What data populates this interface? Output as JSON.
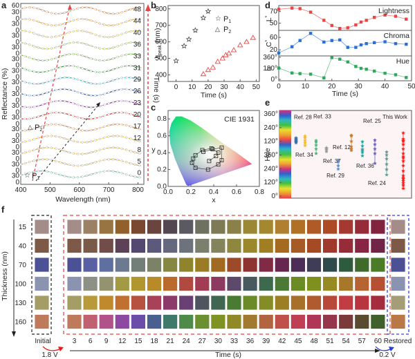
{
  "chart_data": [
    {
      "panel": "a",
      "type": "line",
      "title": "",
      "xlabel": "Wavelength (nm)",
      "ylabel": "Reflectance (%)",
      "right_label": "Time (s)",
      "xlim": [
        400,
        820
      ],
      "xticks": [
        "400",
        "500",
        "600",
        "700",
        "800"
      ],
      "yticks_top": [
        "60",
        "30"
      ],
      "ytick_repeat": [
        "30",
        "0"
      ],
      "series_times": [
        "0",
        "5",
        "8",
        "12",
        "17",
        "20",
        "23",
        "26",
        "29",
        "31",
        "33",
        "36",
        "40",
        "44",
        "48"
      ],
      "series_colors": [
        "#6fc7b7",
        "#e6b537",
        "#e6b537",
        "#f0c030",
        "#f08c35",
        "#e63a30",
        "#a03fb0",
        "#2f63c0",
        "#2fb6cf",
        "#39a83c",
        "#7fc33c",
        "#b4d43a",
        "#f1cf3b",
        "#f5b13a",
        "#f08c35"
      ],
      "annotations": [
        "P1",
        "P2"
      ],
      "peak_P1_path": "black dashed arrow",
      "peak_P2_path": "red dashed arrow"
    },
    {
      "panel": "b",
      "type": "scatter",
      "xlabel": "Time (s)",
      "ylabel": "λpeak (nm)",
      "xlim": [
        -5,
        52
      ],
      "ylim": [
        360,
        820
      ],
      "xticks": [
        "0",
        "10",
        "20",
        "30",
        "40",
        "50"
      ],
      "yticks": [
        "400",
        "500",
        "600",
        "700",
        "800"
      ],
      "legend": [
        "P1",
        "P2"
      ],
      "legend_position": "top-right",
      "series": [
        {
          "name": "P1",
          "marker": "star",
          "color": "#444444",
          "x": [
            0,
            5,
            8,
            12,
            17,
            20
          ],
          "y": [
            485,
            575,
            615,
            670,
            745,
            785
          ]
        },
        {
          "name": "P2",
          "marker": "triangle",
          "color": "#e84545",
          "x": [
            17,
            20,
            23,
            26,
            29,
            31,
            33,
            36,
            40,
            44,
            48
          ],
          "y": [
            405,
            430,
            445,
            480,
            500,
            520,
            530,
            550,
            580,
            600,
            625
          ]
        }
      ]
    },
    {
      "panel": "c",
      "type": "scatter",
      "title": "CIE 1931",
      "xlabel": "x",
      "ylabel": "y",
      "xlim": [
        0,
        0.8
      ],
      "ylim": [
        0,
        0.9
      ],
      "xticks": [
        "0.0",
        "0.2",
        "0.4",
        "0.6",
        "0.8"
      ],
      "yticks": [
        "0.0",
        "0.2",
        "0.4",
        "0.6",
        "0.8"
      ],
      "series": [
        {
          "name": "trajectory",
          "marker": "square",
          "x": [
            0.31,
            0.39,
            0.47,
            0.47,
            0.44,
            0.35,
            0.24,
            0.21,
            0.22,
            0.24,
            0.3,
            0.38,
            0.44,
            0.42,
            0.36
          ],
          "y": [
            0.41,
            0.44,
            0.46,
            0.31,
            0.26,
            0.2,
            0.22,
            0.28,
            0.33,
            0.37,
            0.43,
            0.45,
            0.4,
            0.36,
            0.3
          ]
        }
      ]
    },
    {
      "panel": "d",
      "type": "line",
      "xlabel": "Time (s)",
      "xlim": [
        0,
        50
      ],
      "xticks": [
        "0",
        "10",
        "20",
        "30",
        "40",
        "50"
      ],
      "subplots": [
        {
          "name": "Lightness",
          "ylabel": "L*",
          "color": "#e84545",
          "ylim": [
            40,
            78
          ],
          "yticks": [
            "50",
            "70"
          ],
          "x": [
            0,
            5,
            8,
            12,
            17,
            20,
            23,
            26,
            29,
            31,
            33,
            36,
            40,
            44,
            48
          ],
          "y": [
            74,
            76,
            75,
            69,
            55,
            46,
            41,
            42,
            47,
            52,
            55,
            60,
            64,
            62,
            57
          ]
        },
        {
          "name": "Chroma",
          "ylabel": "C*",
          "color": "#2a6fd6",
          "ylim": [
            5,
            78
          ],
          "yticks": [
            "20",
            "60"
          ],
          "x": [
            0,
            5,
            8,
            12,
            17,
            20,
            23,
            26,
            29,
            31,
            33,
            36,
            40,
            44,
            48
          ],
          "y": [
            10,
            30,
            50,
            73,
            45,
            50,
            52,
            28,
            28,
            36,
            40,
            43,
            46,
            40,
            38
          ]
        },
        {
          "name": "Hue",
          "ylabel": "h",
          "color": "#2fa85c",
          "ylim": [
            0,
            360
          ],
          "yticks": [
            "0°",
            "180°",
            "360°"
          ],
          "x": [
            0,
            5,
            8,
            12,
            17,
            20,
            23,
            26,
            29,
            31,
            33,
            36,
            40,
            44,
            48
          ],
          "y": [
            185,
            105,
            95,
            85,
            25,
            355,
            330,
            285,
            210,
            180,
            165,
            135,
            100,
            75,
            30
          ]
        }
      ]
    },
    {
      "panel": "e",
      "type": "scatter",
      "ylabel": "Hue",
      "yticks": [
        "0°",
        "120°",
        "240°",
        "360°",
        "120°",
        "240°",
        "360°"
      ],
      "ylim": [
        0,
        1080
      ],
      "series": [
        {
          "name": "Ref. 28",
          "color": "#3a6fa8",
          "y": [
            700,
            710,
            720,
            730,
            740,
            755,
            765
          ]
        },
        {
          "name": "Ref. 34",
          "color": "#f2b82c",
          "y": [
            665,
            700,
            730,
            765,
            790
          ]
        },
        {
          "name": "Ref. 33",
          "color": "#3fb87a",
          "y": [
            560,
            620,
            670,
            710,
            730
          ]
        },
        {
          "name": "Ref. 37",
          "color": "#9a9a9a",
          "y": [
            585,
            610,
            620,
            635
          ]
        },
        {
          "name": "Ref. 29",
          "color": "#5b8fd0",
          "y": [
            355,
            400,
            450,
            470
          ]
        },
        {
          "name": "Ref. 12",
          "color": "#c87a25",
          "y": [
            600,
            620,
            650,
            720,
            790,
            800
          ]
        },
        {
          "name": "Ref. 25",
          "color": "#2aa5a5",
          "y": [
            530,
            575,
            600,
            615,
            660,
            715
          ]
        },
        {
          "name": "Ref. 36",
          "color": "#6b5cbf",
          "y": [
            430,
            560,
            620,
            680,
            735
          ]
        },
        {
          "name": "Ref. 24",
          "color": "#5f9a95",
          "y": [
            280,
            350,
            420,
            490,
            540,
            580
          ]
        },
        {
          "name": "This Work",
          "color": "#ff1a1a",
          "y": [
            100,
            140,
            170,
            200,
            225,
            240,
            270,
            330,
            400,
            460,
            500,
            520,
            560,
            620,
            680,
            720,
            730,
            750,
            830
          ]
        }
      ]
    },
    {
      "panel": "f",
      "type": "heatmap",
      "xlabel": "Time (s)",
      "ylabel": "Thickness (nm)",
      "rows": [
        "15",
        "40",
        "70",
        "100",
        "130",
        "160"
      ],
      "columns": [
        "3",
        "6",
        "9",
        "12",
        "15",
        "18",
        "21",
        "24",
        "27",
        "30",
        "33",
        "36",
        "39",
        "42",
        "45",
        "48",
        "51",
        "54",
        "57",
        "60"
      ],
      "initial_label": "Initial",
      "restored_label": "Restored",
      "voltage_forward": "1.8 V",
      "voltage_back": "0.2 V",
      "initial_colors": [
        "#a48c88",
        "#7d5a47",
        "#4c5196",
        "#8a93b0",
        "#a49d65",
        "#bf7a5c"
      ],
      "restored_colors": [
        "#a48c88",
        "#7d5a47",
        "#4c5196",
        "#8a93b0",
        "#a49d78",
        "#b97848"
      ],
      "colors": [
        [
          "#a48c88",
          "#9c8064",
          "#987443",
          "#91602b",
          "#7a4730",
          "#6a4540",
          "#534852",
          "#5a5a60",
          "#6e7060",
          "#7d7a55",
          "#8a8048",
          "#9b8835",
          "#a3882f",
          "#b08030",
          "#b07025",
          "#b05a28",
          "#ad4a25",
          "#a53830",
          "#962c38",
          "#822340"
        ],
        [
          "#7d5a47",
          "#7a5a48",
          "#714c48",
          "#5d4156",
          "#534970",
          "#5b5a7d",
          "#66697d",
          "#6d737d",
          "#7b7f6e",
          "#84845c",
          "#8f8640",
          "#9c882c",
          "#a27e22",
          "#a46a20",
          "#a65a25",
          "#a44a25",
          "#a03a2c",
          "#952c38",
          "#862544",
          "#6f2448"
        ],
        [
          "#4c5196",
          "#5961a0",
          "#60709e",
          "#6b7a90",
          "#717f78",
          "#7c8268",
          "#878745",
          "#8f842c",
          "#9c7b25",
          "#a06a22",
          "#9c4a2a",
          "#8e3330",
          "#802a45",
          "#662650",
          "#4a2e55",
          "#3d3e55",
          "#2f4a4a",
          "#2e5a3d",
          "#3f6a2c",
          "#4c7b28"
        ],
        [
          "#8a93b0",
          "#8d9085",
          "#939370",
          "#a39a44",
          "#b1962e",
          "#b98a28",
          "#bb6a2e",
          "#b04a40",
          "#a23c55",
          "#8c3a60",
          "#5d4a6a",
          "#495a5f",
          "#3d6a4e",
          "#4c7a36",
          "#6b8b25",
          "#80901f",
          "#968b22",
          "#a8782a",
          "#b66432",
          "#b55033"
        ],
        [
          "#a49d65",
          "#b89a3a",
          "#c08a2c",
          "#c27030",
          "#b85240",
          "#a84258",
          "#8c3a6a",
          "#6a3f73",
          "#4e5560",
          "#3f6650",
          "#4a7b33",
          "#6a8b27",
          "#858c25",
          "#9c7e25",
          "#a8702a",
          "#b05a30",
          "#b8483a",
          "#c23d42",
          "#b8343f",
          "#a42c3c"
        ],
        [
          "#bf7a5c",
          "#c06070",
          "#b15288",
          "#8d4aa0",
          "#6b4ca8",
          "#4a6090",
          "#3e7a6a",
          "#4e8a4a",
          "#6b9030",
          "#7f9325",
          "#8f8928",
          "#a17a30",
          "#b26440",
          "#c0504a",
          "#bf4055",
          "#b03658",
          "#96364d",
          "#7a3a3a",
          "#5a4a30",
          "#40602c"
        ]
      ]
    }
  ],
  "panel_labels": {
    "a": "a",
    "b": "b",
    "c": "c",
    "d": "d",
    "e": "e",
    "f": "f"
  },
  "text": {
    "a_xlabel": "Wavelength (nm)",
    "a_ylabel": "Reflectance (%)",
    "a_time": "Time (s)",
    "b_xlabel": "Time (s)",
    "b_ylabel": "λ",
    "b_ylabel_sub": "peak",
    "b_ylabel_unit": " (nm)",
    "b_leg1": "P",
    "b_leg2": "P",
    "c_title": "CIE 1931",
    "c_xlabel": "x",
    "c_ylabel": "y",
    "d_xlabel": "Time (s)",
    "d_l": "L",
    "d_c": "C",
    "d_h": "h",
    "e_ylabel": "Hue",
    "e_thiswork": "This Work",
    "f_xlabel": "Time (s)",
    "f_ylabel": "Thickness (nm)",
    "p1": "P",
    "p2": "P"
  }
}
